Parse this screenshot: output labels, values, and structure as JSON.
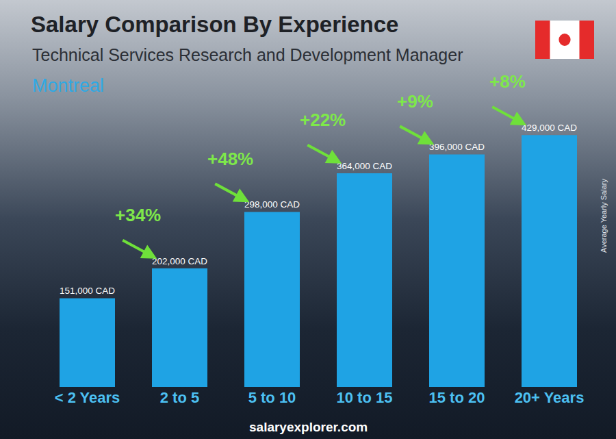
{
  "chart_data": {
    "type": "bar",
    "title": "Salary Comparison By Experience",
    "subtitle": [
      "Technical Services Research and Development Manager",
      "Montreal"
    ],
    "ylabel": "Average Yearly Salary",
    "source": "salaryexplorer.com",
    "categories": [
      "< 2 Years",
      "2 to 5",
      "5 to 10",
      "10 to 15",
      "15 to 20",
      "20+ Years"
    ],
    "values": [
      151000,
      202000,
      298000,
      364000,
      396000,
      429000
    ],
    "value_labels": [
      "151,000 CAD",
      "202,000 CAD",
      "298,000 CAD",
      "364,000 CAD",
      "396,000 CAD",
      "429,000 CAD"
    ],
    "color": "#1fa3e4",
    "data_labels": true,
    "ylim": [
      0,
      560000
    ],
    "tick_labels": "x",
    "grid": false,
    "annotations": [
      {
        "text": "+34%",
        "from": "< 2 Years",
        "to": "2 to 5"
      },
      {
        "text": "+48%",
        "from": "2 to 5",
        "to": "5 to 10"
      },
      {
        "text": "+22%",
        "from": "5 to 10",
        "to": "10 to 15"
      },
      {
        "text": "+9%",
        "from": "10 to 15",
        "to": "15 to 20"
      },
      {
        "text": "+8%",
        "from": "15 to 20",
        "to": "20+ Years"
      }
    ]
  }
}
